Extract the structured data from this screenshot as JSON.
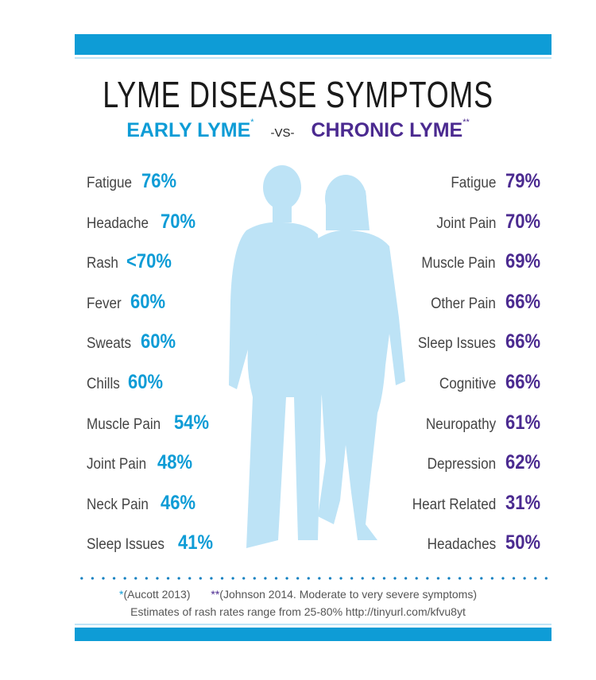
{
  "title": "LYME DISEASE SYMPTOMS",
  "subtitle": {
    "early": "EARLY LYME",
    "early_mark": "*",
    "vs": "-VS-",
    "chronic": "CHRONIC LYME",
    "chronic_mark": "**"
  },
  "colors": {
    "early": "#0e9cd6",
    "chronic": "#4b2a90",
    "silhouette": "#bde3f6",
    "bar": "#0e9cd6"
  },
  "early": [
    {
      "label": "Fatigue",
      "value": "76%"
    },
    {
      "label": "Headache",
      "value": "70%"
    },
    {
      "label": "Rash",
      "value": "<70%"
    },
    {
      "label": "Fever",
      "value": "60%"
    },
    {
      "label": "Sweats",
      "value": "60%"
    },
    {
      "label": "Chills",
      "value": "60%"
    },
    {
      "label": "Muscle Pain",
      "value": "54%"
    },
    {
      "label": "Joint Pain",
      "value": "48%"
    },
    {
      "label": "Neck Pain",
      "value": "46%"
    },
    {
      "label": "Sleep Issues",
      "value": "41%"
    }
  ],
  "chronic": [
    {
      "label": "Fatigue",
      "value": "79%"
    },
    {
      "label": "Joint Pain",
      "value": "70%"
    },
    {
      "label": "Muscle Pain",
      "value": "69%"
    },
    {
      "label": "Other Pain",
      "value": "66%"
    },
    {
      "label": "Sleep Issues",
      "value": "66%"
    },
    {
      "label": "Cognitive",
      "value": "66%"
    },
    {
      "label": "Neuropathy",
      "value": "61%"
    },
    {
      "label": "Depression",
      "value": "62%"
    },
    {
      "label": "Heart Related",
      "value": "31%"
    },
    {
      "label": "Headaches",
      "value": "50%"
    }
  ],
  "footnotes": {
    "mark1": "*",
    "note1": "(Aucott 2013)",
    "mark2": "**",
    "note2": "(Johnson 2014. Moderate to very severe symptoms)",
    "line2": "Estimates of rash rates range from 25-80% http://tinyurl.com/kfvu8yt"
  }
}
